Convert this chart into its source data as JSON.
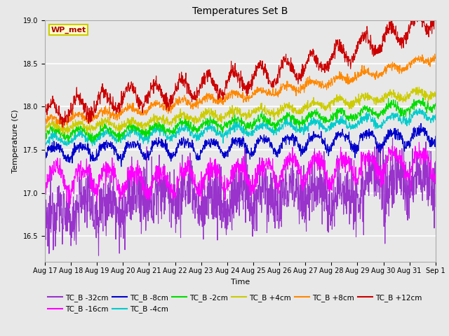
{
  "title": "Temperatures Set B",
  "xlabel": "Time",
  "ylabel": "Temperature (C)",
  "ylim": [
    16.2,
    19.0
  ],
  "series": [
    {
      "label": "TC_B -32cm",
      "color": "#9933cc",
      "base": 16.75,
      "amp": 0.18,
      "daily_amp": 0.13,
      "trend": 0.01,
      "phase": -1.5708
    },
    {
      "label": "TC_B -16cm",
      "color": "#ff00ff",
      "base": 17.23,
      "amp": 0.06,
      "daily_amp": 0.14,
      "trend": 0.012,
      "phase": -1.2
    },
    {
      "label": "TC_B -8cm",
      "color": "#0000cc",
      "base": 17.5,
      "amp": 0.03,
      "daily_amp": 0.09,
      "trend": 0.013,
      "phase": -0.9
    },
    {
      "label": "TC_B -4cm",
      "color": "#00cccc",
      "base": 17.6,
      "amp": 0.025,
      "daily_amp": 0.05,
      "trend": 0.014,
      "phase": -0.6
    },
    {
      "label": "TC_B -2cm",
      "color": "#00dd00",
      "base": 17.67,
      "amp": 0.025,
      "daily_amp": 0.05,
      "trend": 0.015,
      "phase": -0.4
    },
    {
      "label": "TC_B +4cm",
      "color": "#cccc00",
      "base": 17.74,
      "amp": 0.025,
      "daily_amp": 0.04,
      "trend": 0.02,
      "phase": -0.2
    },
    {
      "label": "TC_B +8cm",
      "color": "#ff8800",
      "base": 17.83,
      "amp": 0.025,
      "daily_amp": 0.04,
      "trend": 0.03,
      "phase": 0.0
    },
    {
      "label": "TC_B +12cm",
      "color": "#cc0000",
      "base": 17.9,
      "amp": 0.04,
      "daily_amp": 0.12,
      "trend": 0.05,
      "phase": 0.0
    }
  ],
  "n_points": 1500,
  "xtick_labels": [
    "Aug 17",
    "Aug 18",
    "Aug 19",
    "Aug 20",
    "Aug 21",
    "Aug 22",
    "Aug 23",
    "Aug 24",
    "Aug 25",
    "Aug 26",
    "Aug 27",
    "Aug 28",
    "Aug 29",
    "Aug 30",
    "Aug 31",
    "Sep 1"
  ],
  "wp_met_label": "WP_met",
  "wp_met_color": "#aa0000",
  "wp_met_bg": "#ffffcc",
  "wp_met_edge": "#cccc00",
  "plot_bg_color": "#e8e8e8",
  "fig_bg_color": "#e8e8e8",
  "grid_color": "#ffffff",
  "legend_ncol": 6,
  "figsize": [
    6.4,
    4.8
  ],
  "dpi": 100
}
